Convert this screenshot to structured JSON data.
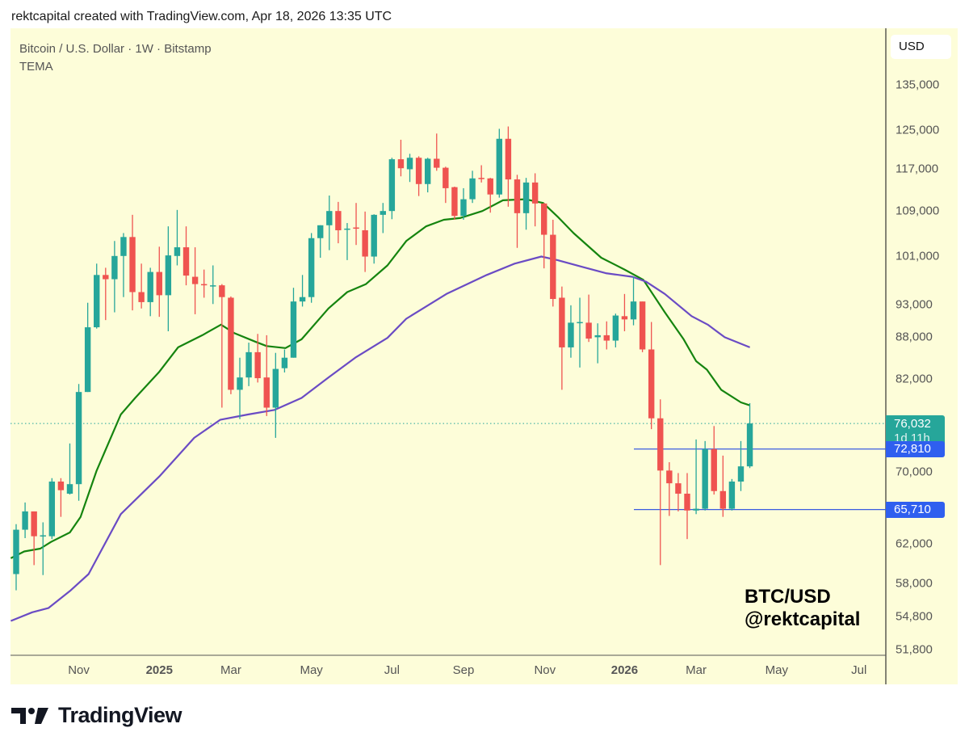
{
  "caption": "rektcapital created with TradingView.com, Apr 18, 2026 13:35 UTC",
  "legend": {
    "symbol": "Bitcoin / U.S. Dollar · 1W · Bitstamp",
    "indicator": "TEMA"
  },
  "currency_label": "USD",
  "overlay": {
    "line1": "BTC/USD",
    "line2": "@rektcapital"
  },
  "logo_text": "TradingView",
  "colors": {
    "background": "#fdfdd9",
    "up": "#26a69a",
    "down": "#ef5350",
    "tema_fast": "#15840f",
    "tema_slow": "#6a4bc4",
    "level_line": "#3a5ce0",
    "badge_blue": "#2f5fef",
    "badge_teal": "#26a69a"
  },
  "chart_data": {
    "type": "candlestick",
    "title": "Bitcoin / U.S. Dollar · 1W · Bitstamp",
    "y_scale": "log",
    "ylim": [
      51000,
      140000
    ],
    "grid": false,
    "x_tick_labels": [
      {
        "label": "Nov",
        "bold": false
      },
      {
        "label": "2025",
        "bold": true
      },
      {
        "label": "Mar",
        "bold": false
      },
      {
        "label": "May",
        "bold": false
      },
      {
        "label": "Jul",
        "bold": false
      },
      {
        "label": "Sep",
        "bold": false
      },
      {
        "label": "Nov",
        "bold": false
      },
      {
        "label": "2026",
        "bold": true
      },
      {
        "label": "Mar",
        "bold": false
      },
      {
        "label": "May",
        "bold": false
      },
      {
        "label": "Jul",
        "bold": false
      }
    ],
    "y_tick_labels": [
      {
        "label": "135,000",
        "value": 135000
      },
      {
        "label": "125,000",
        "value": 125000
      },
      {
        "label": "117,000",
        "value": 117000
      },
      {
        "label": "109,000",
        "value": 109000
      },
      {
        "label": "101,000",
        "value": 101000
      },
      {
        "label": "93,000",
        "value": 93000
      },
      {
        "label": "88,000",
        "value": 88000
      },
      {
        "label": "82,000",
        "value": 82000
      },
      {
        "label": "70,000",
        "value": 70000
      },
      {
        "label": "62,000",
        "value": 62000
      },
      {
        "label": "58,000",
        "value": 58000
      },
      {
        "label": "54,800",
        "value": 54800
      },
      {
        "label": "51,800",
        "value": 51800
      }
    ],
    "current_price": {
      "label": "76,032",
      "value": 76032,
      "countdown": "1d 11h"
    },
    "levels": [
      {
        "label": "72,810",
        "value": 72810
      },
      {
        "label": "65,710",
        "value": 65710
      }
    ],
    "candles_ohlc": [
      [
        58900,
        64100,
        57300,
        63500
      ],
      [
        63500,
        66500,
        62600,
        65500
      ],
      [
        65500,
        65500,
        59800,
        62800
      ],
      [
        62900,
        64300,
        58800,
        62900
      ],
      [
        62800,
        69300,
        62500,
        68900
      ],
      [
        68900,
        69300,
        64900,
        67900
      ],
      [
        67500,
        73500,
        67400,
        68600
      ],
      [
        68600,
        81300,
        66700,
        80200
      ],
      [
        80200,
        93300,
        80200,
        89500
      ],
      [
        89500,
        99700,
        89300,
        97800
      ],
      [
        97800,
        99000,
        90600,
        97100
      ],
      [
        97100,
        103600,
        91800,
        101000
      ],
      [
        101000,
        105000,
        94200,
        104300
      ],
      [
        104300,
        108300,
        92100,
        95000
      ],
      [
        95000,
        99700,
        92400,
        93400
      ],
      [
        93400,
        99000,
        91200,
        98300
      ],
      [
        98300,
        102600,
        91100,
        94500
      ],
      [
        94500,
        106200,
        88900,
        101100
      ],
      [
        101000,
        109200,
        99400,
        102500
      ],
      [
        102500,
        106200,
        96100,
        97700
      ],
      [
        97500,
        102500,
        91500,
        96300
      ],
      [
        96300,
        98700,
        94100,
        96100
      ],
      [
        96100,
        99400,
        93100,
        96100
      ],
      [
        96100,
        96300,
        78100,
        94200
      ],
      [
        94100,
        94300,
        79900,
        80500
      ],
      [
        80500,
        85000,
        76600,
        82200
      ],
      [
        82200,
        87200,
        81000,
        85800
      ],
      [
        85800,
        88500,
        81500,
        82100
      ],
      [
        82200,
        88300,
        77000,
        78100
      ],
      [
        78100,
        85700,
        74200,
        83400
      ],
      [
        83500,
        86200,
        82900,
        85000
      ],
      [
        85000,
        95700,
        85000,
        93500
      ],
      [
        93500,
        97800,
        92700,
        94200
      ],
      [
        94200,
        105000,
        93300,
        104100
      ],
      [
        104100,
        106400,
        100700,
        106400
      ],
      [
        106400,
        111900,
        102000,
        109000
      ],
      [
        109000,
        110700,
        103200,
        105500
      ],
      [
        105800,
        106800,
        100300,
        105800
      ],
      [
        106000,
        110500,
        102900,
        105800
      ],
      [
        105500,
        108900,
        98300,
        100900
      ],
      [
        100900,
        108400,
        99700,
        108300
      ],
      [
        108300,
        110500,
        105000,
        109000
      ],
      [
        109000,
        119300,
        107500,
        119000
      ],
      [
        119000,
        123000,
        115600,
        117200
      ],
      [
        117000,
        120100,
        114500,
        119300
      ],
      [
        119300,
        119600,
        111800,
        114100
      ],
      [
        114100,
        119300,
        112500,
        119100
      ],
      [
        119100,
        124300,
        116700,
        117300
      ],
      [
        117300,
        117500,
        110500,
        113300
      ],
      [
        113500,
        113600,
        107400,
        108100
      ],
      [
        108100,
        113300,
        107400,
        111200
      ],
      [
        111200,
        116700,
        110500,
        115200
      ],
      [
        115300,
        117800,
        114400,
        115200
      ],
      [
        115200,
        115300,
        108700,
        112100
      ],
      [
        112100,
        125300,
        111500,
        123200
      ],
      [
        123200,
        125800,
        109800,
        115000
      ],
      [
        115000,
        115900,
        102400,
        108600
      ],
      [
        108600,
        115300,
        105600,
        114400
      ],
      [
        114400,
        116200,
        106200,
        110400
      ],
      [
        110400,
        110500,
        98900,
        104700
      ],
      [
        104700,
        107400,
        92700,
        93900
      ],
      [
        94100,
        95900,
        80500,
        86500
      ],
      [
        86500,
        92900,
        85000,
        90200
      ],
      [
        90300,
        94100,
        83600,
        90300
      ],
      [
        90200,
        94600,
        87300,
        87800
      ],
      [
        88000,
        90100,
        84200,
        88300
      ],
      [
        88300,
        90400,
        86200,
        87500
      ],
      [
        87500,
        91600,
        86500,
        91300
      ],
      [
        91200,
        94700,
        88900,
        90700
      ],
      [
        90700,
        97500,
        89800,
        93500
      ],
      [
        93500,
        93500,
        85800,
        86200
      ],
      [
        86200,
        90300,
        75300,
        76700
      ],
      [
        76700,
        79200,
        59800,
        70200
      ],
      [
        70200,
        71200,
        65000,
        68700
      ],
      [
        68700,
        69900,
        65500,
        67500
      ],
      [
        67500,
        69900,
        62500,
        65600
      ],
      [
        65600,
        74000,
        65200,
        65800
      ],
      [
        65800,
        73800,
        65600,
        72800
      ],
      [
        72800,
        75700,
        67400,
        67800
      ],
      [
        67800,
        72000,
        64900,
        65800
      ],
      [
        65800,
        69200,
        65600,
        68900
      ],
      [
        68900,
        73800,
        67800,
        70700
      ],
      [
        70700,
        78700,
        70500,
        76032
      ]
    ],
    "series": [
      {
        "kind": "TEMA fast",
        "points": [
          [
            0.4,
            60500
          ],
          [
            1.9,
            61200
          ],
          [
            3.7,
            61500
          ],
          [
            4.9,
            62200
          ],
          [
            7.0,
            63200
          ],
          [
            8.2,
            64900
          ],
          [
            10.0,
            70200
          ],
          [
            12.7,
            77200
          ],
          [
            14.3,
            79400
          ],
          [
            17.0,
            83000
          ],
          [
            19.1,
            86500
          ],
          [
            21.8,
            88300
          ],
          [
            23.9,
            89900
          ],
          [
            25.4,
            88600
          ],
          [
            27.8,
            87300
          ],
          [
            29.0,
            86700
          ],
          [
            31.1,
            86400
          ],
          [
            32.9,
            87700
          ],
          [
            35.9,
            92400
          ],
          [
            38.0,
            95000
          ],
          [
            40.1,
            96300
          ],
          [
            42.5,
            99400
          ],
          [
            44.6,
            103600
          ],
          [
            46.8,
            106200
          ],
          [
            48.8,
            107400
          ],
          [
            50.6,
            107700
          ],
          [
            53.1,
            109000
          ],
          [
            55.4,
            111000
          ],
          [
            57.9,
            111200
          ],
          [
            59.9,
            110500
          ],
          [
            61.5,
            108000
          ],
          [
            63.3,
            105000
          ],
          [
            66.4,
            100700
          ],
          [
            69.0,
            98700
          ],
          [
            71.1,
            97000
          ],
          [
            73.5,
            91800
          ],
          [
            75.6,
            87700
          ],
          [
            77.0,
            84500
          ],
          [
            78.2,
            83300
          ],
          [
            79.8,
            80500
          ],
          [
            82.0,
            78800
          ],
          [
            83.0,
            78400
          ]
        ]
      },
      {
        "kind": "TEMA slow",
        "points": [
          [
            0.4,
            54400
          ],
          [
            2.8,
            55200
          ],
          [
            4.6,
            55600
          ],
          [
            7.1,
            57300
          ],
          [
            9.1,
            58900
          ],
          [
            12.7,
            65200
          ],
          [
            17.0,
            69500
          ],
          [
            20.9,
            74200
          ],
          [
            23.8,
            76500
          ],
          [
            26.9,
            77200
          ],
          [
            29.9,
            77800
          ],
          [
            32.9,
            79400
          ],
          [
            35.9,
            82200
          ],
          [
            38.9,
            85000
          ],
          [
            42.5,
            87900
          ],
          [
            44.6,
            90800
          ],
          [
            49.1,
            94700
          ],
          [
            53.6,
            97800
          ],
          [
            56.7,
            99700
          ],
          [
            59.7,
            100900
          ],
          [
            61.5,
            100300
          ],
          [
            64.4,
            99100
          ],
          [
            66.9,
            98100
          ],
          [
            69.9,
            97500
          ],
          [
            71.4,
            96700
          ],
          [
            73.5,
            94700
          ],
          [
            76.5,
            91200
          ],
          [
            78.3,
            89900
          ],
          [
            80.2,
            88000
          ],
          [
            83.0,
            86500
          ]
        ]
      }
    ]
  }
}
